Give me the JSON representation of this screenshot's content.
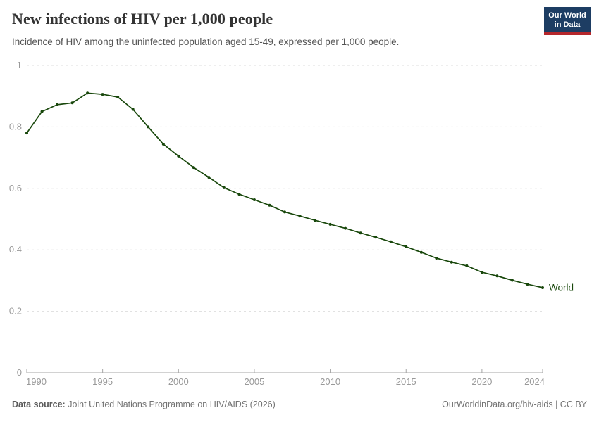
{
  "header": {
    "title": "New infections of HIV per 1,000 people",
    "subtitle": "Incidence of HIV among the uninfected population aged 15-49, expressed per 1,000 people.",
    "logo": {
      "line1": "Our World",
      "line2": "in Data",
      "bg_color": "#1d3d63",
      "stripe_color": "#b5272c"
    }
  },
  "footer": {
    "source_label": "Data source:",
    "source_text": " Joint United Nations Programme on HIV/AIDS (2026)",
    "credit": "OurWorldinData.org/hiv-aids | CC BY"
  },
  "chart_data": {
    "type": "line",
    "title": "New infections of HIV per 1,000 people",
    "xlabel": "",
    "ylabel": "",
    "xlim": [
      1990,
      2024
    ],
    "ylim": [
      0,
      1
    ],
    "x_ticks": [
      1990,
      1995,
      2000,
      2005,
      2010,
      2015,
      2020,
      2024
    ],
    "y_ticks": [
      0,
      0.2,
      0.4,
      0.6,
      0.8,
      1
    ],
    "grid": "horizontal-dashed",
    "legend_position": "end-of-line",
    "series": [
      {
        "name": "World",
        "x": [
          1990,
          1991,
          1992,
          1993,
          1994,
          1995,
          1996,
          1997,
          1998,
          1999,
          2000,
          2001,
          2002,
          2003,
          2004,
          2005,
          2006,
          2007,
          2008,
          2009,
          2010,
          2011,
          2012,
          2013,
          2014,
          2015,
          2016,
          2017,
          2018,
          2019,
          2020,
          2021,
          2022,
          2023,
          2024
        ],
        "values": [
          0.78,
          0.85,
          0.872,
          0.878,
          0.91,
          0.906,
          0.897,
          0.857,
          0.8,
          0.744,
          0.705,
          0.668,
          0.636,
          0.602,
          0.581,
          0.563,
          0.545,
          0.523,
          0.51,
          0.496,
          0.483,
          0.47,
          0.455,
          0.441,
          0.426,
          0.41,
          0.392,
          0.373,
          0.36,
          0.348,
          0.327,
          0.315,
          0.301,
          0.288,
          0.277
        ]
      }
    ],
    "colors": {
      "line": "#18470B",
      "tick_label": "#999999",
      "gridline": "#dddddd",
      "axis": "#a5a5a5"
    }
  }
}
